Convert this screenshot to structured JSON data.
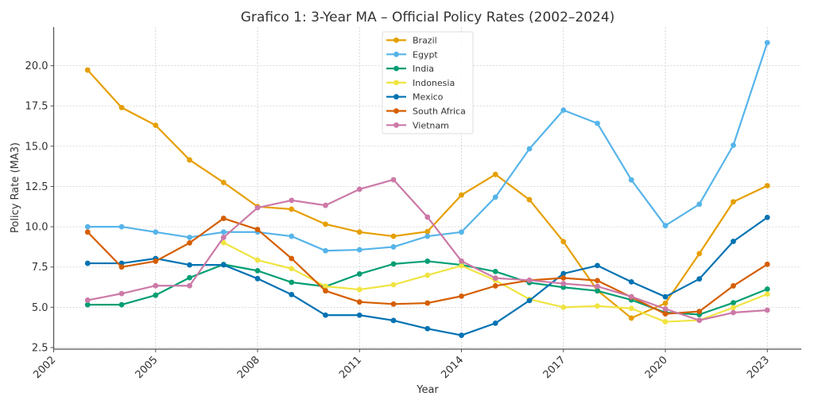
{
  "chart_data": {
    "type": "line",
    "title": "Grafico 1: 3-Year MA – Official Policy Rates (2002–2024)",
    "xlabel": "Year",
    "ylabel": "Policy Rate (MA3)",
    "xlim": [
      2002,
      2024
    ],
    "ylim": [
      2.4,
      22.4
    ],
    "xticks": [
      2002,
      2005,
      2008,
      2011,
      2014,
      2017,
      2020,
      2023
    ],
    "xtick_labels": [
      "2002",
      "2005",
      "2008",
      "2011",
      "2014",
      "2017",
      "2020",
      "2023"
    ],
    "yticks": [
      2.5,
      5.0,
      7.5,
      10.0,
      12.5,
      15.0,
      17.5,
      20.0
    ],
    "ytick_labels": [
      "2.5",
      "5.0",
      "7.5",
      "10.0",
      "12.5",
      "15.0",
      "17.5",
      "20.0"
    ],
    "grid": true,
    "legend_position": "top-center",
    "x": [
      2003,
      2004,
      2005,
      2006,
      2007,
      2008,
      2009,
      2010,
      2011,
      2012,
      2013,
      2014,
      2015,
      2016,
      2017,
      2018,
      2019,
      2020,
      2021,
      2022,
      2023
    ],
    "series": [
      {
        "name": "Brazil",
        "color": "#E69F00",
        "values": [
          19.73,
          17.4,
          16.3,
          14.15,
          12.75,
          11.25,
          11.09,
          10.16,
          9.67,
          9.41,
          9.7,
          11.97,
          13.25,
          11.68,
          9.08,
          6.05,
          4.33,
          5.25,
          8.33,
          11.55,
          12.55
        ]
      },
      {
        "name": "Egypt",
        "color": "#56B4E9",
        "values": [
          10.0,
          10.0,
          9.67,
          9.34,
          9.67,
          9.67,
          9.41,
          8.51,
          8.57,
          8.75,
          9.41,
          9.67,
          11.84,
          14.84,
          17.24,
          16.42,
          12.91,
          10.07,
          11.4,
          15.06,
          21.43
        ]
      },
      {
        "name": "India",
        "color": "#009E73",
        "values": [
          5.16,
          5.16,
          5.75,
          6.84,
          7.66,
          7.27,
          6.55,
          6.29,
          7.07,
          7.69,
          7.86,
          7.63,
          7.22,
          6.53,
          6.24,
          6.02,
          5.46,
          4.67,
          4.55,
          5.28,
          6.13
        ]
      },
      {
        "name": "Indonesia",
        "color": "#F0E442",
        "values": [
          null,
          null,
          null,
          null,
          9.01,
          7.93,
          7.4,
          6.3,
          6.1,
          6.4,
          6.99,
          7.58,
          6.67,
          5.5,
          5.0,
          5.08,
          4.93,
          4.1,
          4.2,
          4.98,
          5.82
        ]
      },
      {
        "name": "Mexico",
        "color": "#0072B2",
        "values": [
          7.73,
          7.73,
          8.03,
          7.63,
          7.63,
          6.78,
          5.79,
          4.51,
          4.51,
          4.18,
          3.67,
          3.26,
          4.01,
          5.42,
          7.09,
          7.59,
          6.58,
          5.65,
          6.76,
          9.09,
          10.58
        ]
      },
      {
        "name": "South Africa",
        "color": "#D55E00",
        "values": [
          9.67,
          7.5,
          7.86,
          9.0,
          10.52,
          9.83,
          8.03,
          6.02,
          5.33,
          5.2,
          5.26,
          5.69,
          6.33,
          6.67,
          6.82,
          6.66,
          5.63,
          4.59,
          4.74,
          6.33,
          7.67
        ]
      },
      {
        "name": "Vietnam",
        "color": "#CC79A7",
        "values": [
          5.44,
          5.85,
          6.34,
          6.34,
          9.34,
          11.18,
          11.64,
          11.33,
          12.33,
          12.92,
          10.6,
          7.87,
          6.81,
          6.68,
          6.47,
          6.3,
          5.66,
          4.9,
          4.19,
          4.67,
          4.82
        ]
      }
    ]
  }
}
